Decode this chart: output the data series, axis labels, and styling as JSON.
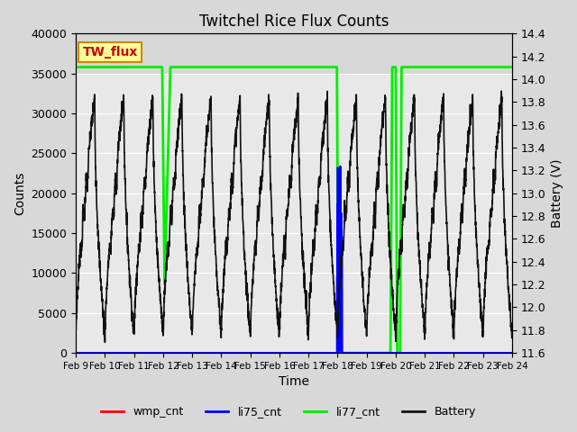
{
  "title": "Twitchel Rice Flux Counts",
  "xlabel": "Time",
  "ylabel_left": "Counts",
  "ylabel_right": "Battery (V)",
  "ylim_left": [
    0,
    40000
  ],
  "ylim_right": [
    11.6,
    14.4
  ],
  "x_tick_labels": [
    "Feb 9",
    "Feb 10",
    "Feb 11",
    "Feb 12",
    "Feb 13",
    "Feb 14",
    "Feb 15",
    "Feb 16",
    "Feb 17",
    "Feb 18",
    "Feb 19",
    "Feb 20",
    "Feb 21",
    "Feb 22",
    "Feb 23",
    "Feb 24"
  ],
  "annotation_text": "TW_flux",
  "annotation_color": "#cc0000",
  "annotation_box_color": "#ffff99",
  "annotation_box_edge": "#cc8800",
  "fig_bg_color": "#d8d8d8",
  "plot_bg_color": "#e8e8e8",
  "wmp_color": "#ff0000",
  "li75_color": "#0000ff",
  "li77_color": "#00ee00",
  "battery_color": "#111111",
  "grid_color": "#ffffff",
  "band_color": "#cccccc"
}
